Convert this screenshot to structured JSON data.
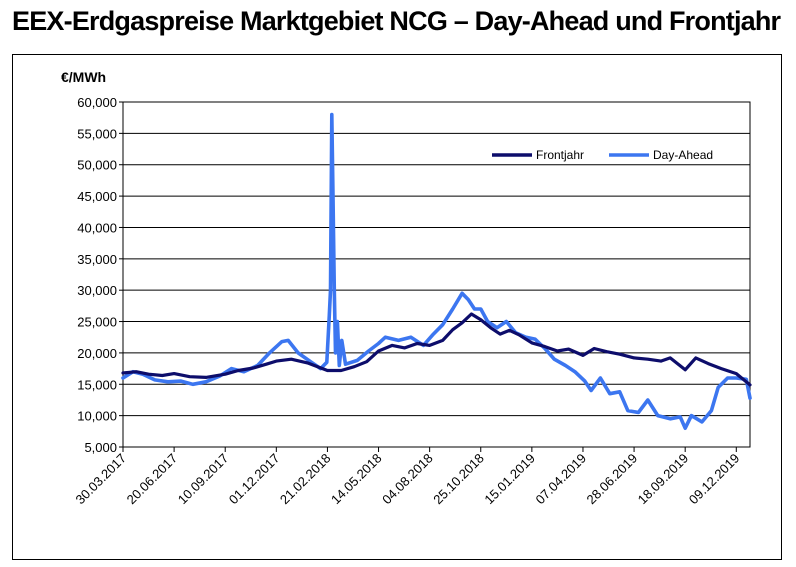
{
  "chart_data": {
    "type": "line",
    "title": "EEX-Erdgaspreise Marktgebiet NCG – Day-Ahead und Frontjahr",
    "ylabel": "€/MWh",
    "xlabel": "",
    "ylim": [
      5000,
      60000
    ],
    "y_ticks": [
      "5,000",
      "10,000",
      "15,000",
      "20,000",
      "25,000",
      "30,000",
      "35,000",
      "40,000",
      "45,000",
      "50,000",
      "55,000",
      "60,000"
    ],
    "y_tick_values": [
      5000,
      10000,
      15000,
      20000,
      25000,
      30000,
      35000,
      40000,
      45000,
      50000,
      55000,
      60000
    ],
    "x_ticks": [
      "30.03.2017",
      "20.06.2017",
      "10.09.2017",
      "01.12.2017",
      "21.02.2018",
      "14.05.2018",
      "04.08.2018",
      "25.10.2018",
      "15.01.2019",
      "07.04.2019",
      "28.06.2019",
      "18.09.2019",
      "09.12.2019"
    ],
    "xlim": [
      "2017-03-30",
      "2019-12-31"
    ],
    "grid": "horizontal",
    "legend_position": "top-right",
    "series": [
      {
        "name": "Frontjahr",
        "color": "#0d0d6b",
        "points": [
          [
            "2017-03-30",
            16800
          ],
          [
            "2017-04-20",
            17000
          ],
          [
            "2017-05-10",
            16600
          ],
          [
            "2017-06-01",
            16400
          ],
          [
            "2017-06-20",
            16700
          ],
          [
            "2017-07-15",
            16200
          ],
          [
            "2017-08-10",
            16100
          ],
          [
            "2017-09-10",
            16600
          ],
          [
            "2017-10-01",
            17200
          ],
          [
            "2017-10-25",
            17600
          ],
          [
            "2017-11-15",
            18200
          ],
          [
            "2017-12-01",
            18700
          ],
          [
            "2017-12-25",
            19000
          ],
          [
            "2018-01-20",
            18400
          ],
          [
            "2018-02-21",
            17200
          ],
          [
            "2018-03-15",
            17200
          ],
          [
            "2018-04-05",
            17800
          ],
          [
            "2018-04-25",
            18600
          ],
          [
            "2018-05-14",
            20300
          ],
          [
            "2018-06-05",
            21200
          ],
          [
            "2018-06-25",
            20800
          ],
          [
            "2018-07-15",
            21500
          ],
          [
            "2018-08-04",
            21200
          ],
          [
            "2018-08-25",
            22000
          ],
          [
            "2018-09-10",
            23700
          ],
          [
            "2018-09-25",
            24800
          ],
          [
            "2018-10-10",
            26200
          ],
          [
            "2018-10-25",
            25300
          ],
          [
            "2018-11-10",
            24000
          ],
          [
            "2018-11-25",
            23000
          ],
          [
            "2018-12-10",
            23600
          ],
          [
            "2018-12-25",
            22900
          ],
          [
            "2019-01-15",
            21600
          ],
          [
            "2019-02-05",
            21000
          ],
          [
            "2019-02-25",
            20300
          ],
          [
            "2019-03-15",
            20600
          ],
          [
            "2019-04-07",
            19600
          ],
          [
            "2019-04-25",
            20700
          ],
          [
            "2019-05-15",
            20200
          ],
          [
            "2019-06-05",
            19800
          ],
          [
            "2019-06-28",
            19200
          ],
          [
            "2019-07-20",
            19000
          ],
          [
            "2019-08-10",
            18700
          ],
          [
            "2019-08-25",
            19200
          ],
          [
            "2019-09-18",
            17300
          ],
          [
            "2019-10-05",
            19200
          ],
          [
            "2019-10-25",
            18300
          ],
          [
            "2019-11-15",
            17500
          ],
          [
            "2019-12-09",
            16700
          ],
          [
            "2019-12-31",
            14900
          ]
        ]
      },
      {
        "name": "Day-Ahead",
        "color": "#3c76f0",
        "points": [
          [
            "2017-03-30",
            16000
          ],
          [
            "2017-04-15",
            17000
          ],
          [
            "2017-05-01",
            16600
          ],
          [
            "2017-05-20",
            15700
          ],
          [
            "2017-06-10",
            15400
          ],
          [
            "2017-07-01",
            15500
          ],
          [
            "2017-07-20",
            15000
          ],
          [
            "2017-08-10",
            15400
          ],
          [
            "2017-09-01",
            16300
          ],
          [
            "2017-09-20",
            17500
          ],
          [
            "2017-10-10",
            17000
          ],
          [
            "2017-11-01",
            18000
          ],
          [
            "2017-11-20",
            20000
          ],
          [
            "2017-12-10",
            21800
          ],
          [
            "2017-12-20",
            22000
          ],
          [
            "2018-01-05",
            20000
          ],
          [
            "2018-01-25",
            18600
          ],
          [
            "2018-02-10",
            17500
          ],
          [
            "2018-02-20",
            18500
          ],
          [
            "2018-02-24",
            26000
          ],
          [
            "2018-02-26",
            30000
          ],
          [
            "2018-02-28",
            58000
          ],
          [
            "2018-03-02",
            45000
          ],
          [
            "2018-03-04",
            30000
          ],
          [
            "2018-03-06",
            20000
          ],
          [
            "2018-03-09",
            25000
          ],
          [
            "2018-03-12",
            18000
          ],
          [
            "2018-03-16",
            22000
          ],
          [
            "2018-03-22",
            18200
          ],
          [
            "2018-04-10",
            18800
          ],
          [
            "2018-04-28",
            20300
          ],
          [
            "2018-05-14",
            21500
          ],
          [
            "2018-05-25",
            22500
          ],
          [
            "2018-06-15",
            22000
          ],
          [
            "2018-07-05",
            22500
          ],
          [
            "2018-07-25",
            21200
          ],
          [
            "2018-08-10",
            23000
          ],
          [
            "2018-08-25",
            24500
          ],
          [
            "2018-09-10",
            27000
          ],
          [
            "2018-09-25",
            29500
          ],
          [
            "2018-10-05",
            28500
          ],
          [
            "2018-10-15",
            27000
          ],
          [
            "2018-10-25",
            27000
          ],
          [
            "2018-11-05",
            25000
          ],
          [
            "2018-11-20",
            24000
          ],
          [
            "2018-12-05",
            25000
          ],
          [
            "2018-12-20",
            23200
          ],
          [
            "2019-01-05",
            22500
          ],
          [
            "2019-01-20",
            22200
          ],
          [
            "2019-02-05",
            20700
          ],
          [
            "2019-02-20",
            19000
          ],
          [
            "2019-03-10",
            18000
          ],
          [
            "2019-03-25",
            17000
          ],
          [
            "2019-04-10",
            15500
          ],
          [
            "2019-04-20",
            14000
          ],
          [
            "2019-05-05",
            16000
          ],
          [
            "2019-05-20",
            13500
          ],
          [
            "2019-06-05",
            13800
          ],
          [
            "2019-06-18",
            10800
          ],
          [
            "2019-07-05",
            10500
          ],
          [
            "2019-07-20",
            12500
          ],
          [
            "2019-08-05",
            10000
          ],
          [
            "2019-08-25",
            9500
          ],
          [
            "2019-09-10",
            9800
          ],
          [
            "2019-09-18",
            8000
          ],
          [
            "2019-09-28",
            10000
          ],
          [
            "2019-10-15",
            9000
          ],
          [
            "2019-10-30",
            10800
          ],
          [
            "2019-11-10",
            14500
          ],
          [
            "2019-11-25",
            16000
          ],
          [
            "2019-12-09",
            16000
          ],
          [
            "2019-12-25",
            15800
          ],
          [
            "2019-12-31",
            12800
          ]
        ]
      }
    ]
  }
}
